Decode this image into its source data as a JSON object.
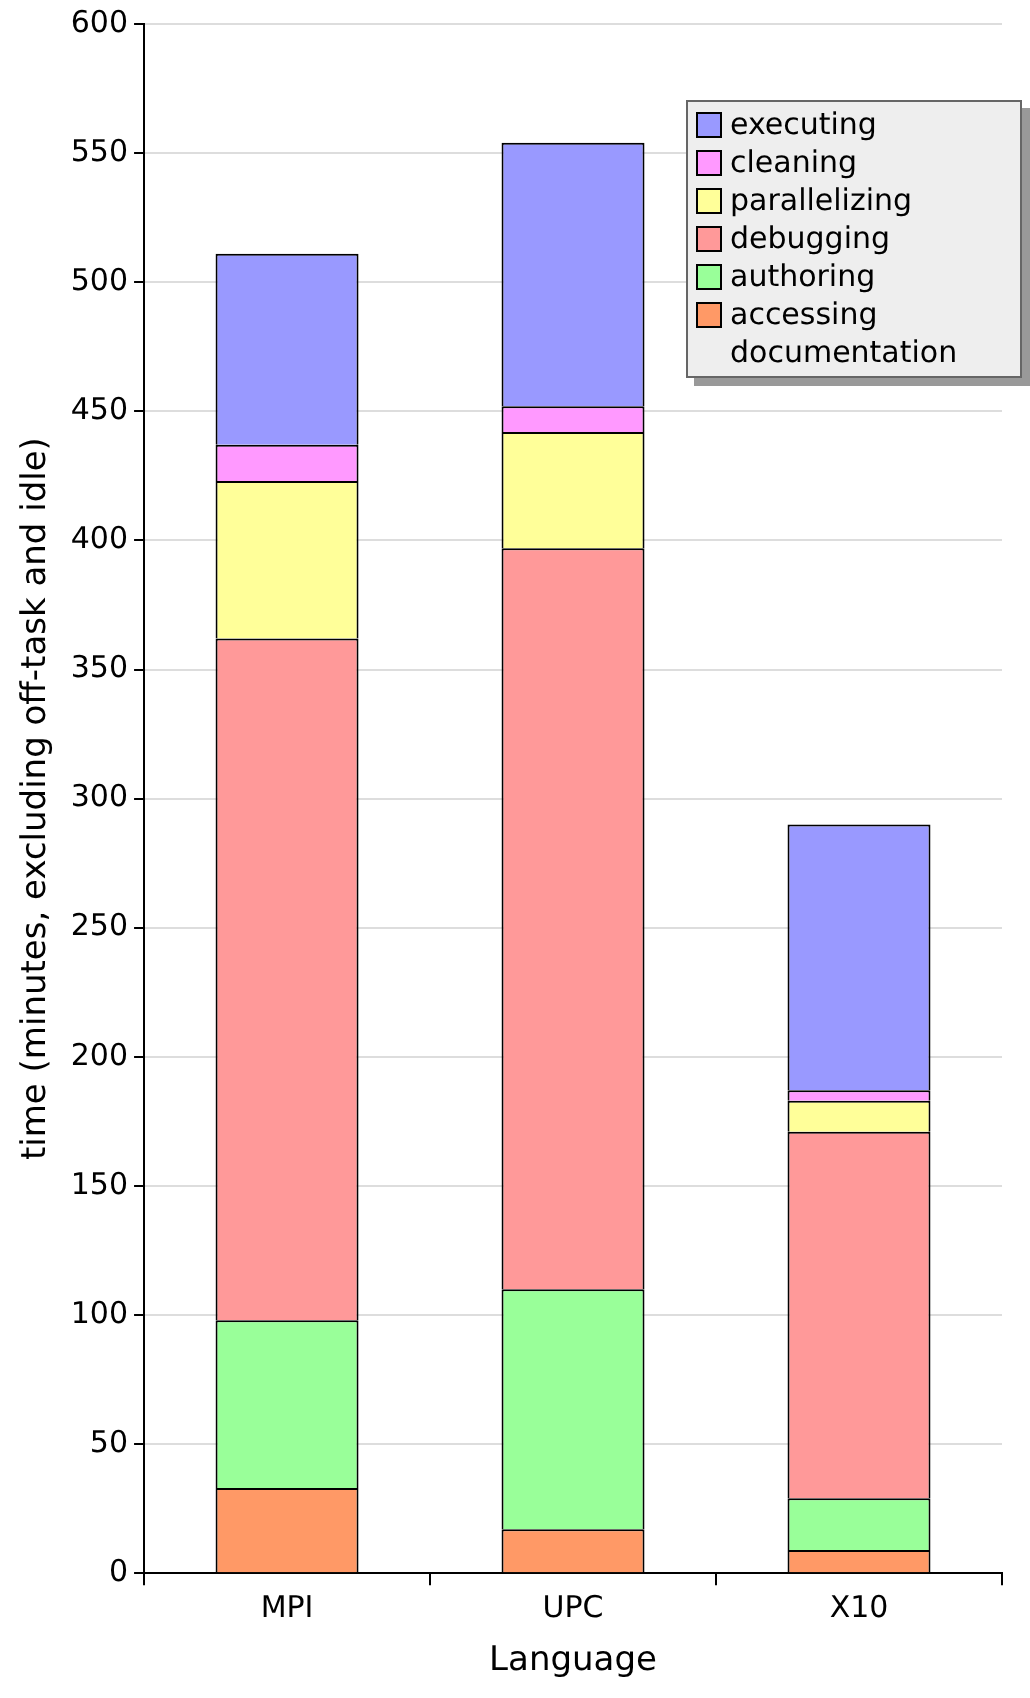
{
  "chart_data": {
    "type": "bar",
    "stacked": true,
    "xlabel": "Language",
    "ylabel": "time (minutes, excluding off-task and idle)",
    "categories": [
      "MPI",
      "UPC",
      "X10"
    ],
    "ylim": [
      0,
      600
    ],
    "yticks": [
      0,
      50,
      100,
      150,
      200,
      250,
      300,
      350,
      400,
      450,
      500,
      550,
      600
    ],
    "grid": "y",
    "legend": "top right",
    "series": [
      {
        "name": "accessing documentation",
        "color": "#ff9966",
        "values": [
          33,
          17,
          9
        ]
      },
      {
        "name": "authoring",
        "color": "#99ff99",
        "values": [
          65,
          93,
          20
        ]
      },
      {
        "name": "debugging",
        "color": "#ff9999",
        "values": [
          264,
          287,
          142
        ]
      },
      {
        "name": "parallelizing",
        "color": "#ffff99",
        "values": [
          61,
          45,
          12
        ]
      },
      {
        "name": "cleaning",
        "color": "#ff99ff",
        "values": [
          14,
          10,
          4
        ]
      },
      {
        "name": "executing",
        "color": "#9999ff",
        "values": [
          74,
          102,
          103
        ]
      }
    ]
  }
}
